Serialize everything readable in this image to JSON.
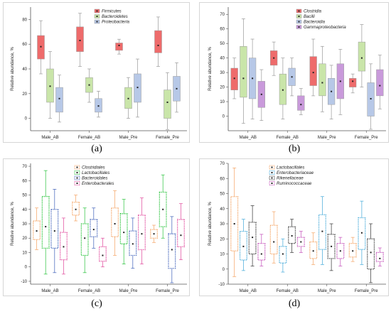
{
  "figure": {
    "captions": [
      "(a)",
      "(b)",
      "(c)",
      "(d)"
    ]
  },
  "chart_data": [
    {
      "type": "box",
      "panel": "a",
      "style": "solid",
      "ylabel": "Relative abundance, %",
      "categories": [
        "Male_AB",
        "Female_AB",
        "Male_Pre",
        "Female_Pre"
      ],
      "ylim": [
        -10,
        90
      ],
      "yticks": [
        0,
        20,
        40,
        60,
        80
      ],
      "legend_position": "top-right",
      "series": [
        {
          "name": "Firmicutes",
          "color": "#ee6b6b",
          "boxes": [
            {
              "min": 36,
              "q1": 48,
              "median": 58,
              "q3": 67,
              "max": 79
            },
            {
              "min": 42,
              "q1": 54,
              "median": 63,
              "q3": 74,
              "max": 85
            },
            {
              "min": 52,
              "q1": 55,
              "median": 59,
              "q3": 61,
              "max": 64
            },
            {
              "min": 42,
              "q1": 53,
              "median": 59,
              "q3": 71,
              "max": 82
            }
          ]
        },
        {
          "name": "Bacteroidetes",
          "color": "#c9e5a9",
          "boxes": [
            {
              "min": 0,
              "q1": 13,
              "median": 26,
              "q3": 40,
              "max": 54
            },
            {
              "min": 13,
              "q1": 21,
              "median": 27,
              "q3": 33,
              "max": 40
            },
            {
              "min": 0,
              "q1": 8,
              "median": 16,
              "q3": 25,
              "max": 33
            },
            {
              "min": -9,
              "q1": 0,
              "median": 13,
              "q3": 23,
              "max": 37
            }
          ]
        },
        {
          "name": "Proteobacteria",
          "color": "#b7c8e7",
          "boxes": [
            {
              "min": -3,
              "q1": 5,
              "median": 16,
              "q3": 25,
              "max": 35
            },
            {
              "min": 1,
              "q1": 5,
              "median": 10,
              "q3": 16,
              "max": 22
            },
            {
              "min": 1,
              "q1": 13,
              "median": 25,
              "q3": 36,
              "max": 48
            },
            {
              "min": 5,
              "q1": 14,
              "median": 24,
              "q3": 34,
              "max": 45
            }
          ]
        }
      ]
    },
    {
      "type": "box",
      "panel": "b",
      "style": "solid",
      "ylabel": "Relative abundance, %",
      "categories": [
        "Male_AB",
        "Female_AB",
        "Male_Pre",
        "Female_Pre"
      ],
      "ylim": [
        -10,
        75
      ],
      "yticks": [
        0,
        10,
        20,
        30,
        40,
        50,
        60,
        70
      ],
      "legend_position": "top-right",
      "series": [
        {
          "name": "Clostridia",
          "color": "#ee6b6b",
          "boxes": [
            {
              "min": 12,
              "q1": 18,
              "median": 26,
              "q3": 33,
              "max": 40
            },
            {
              "min": 28,
              "q1": 35,
              "median": 40,
              "q3": 45,
              "max": 51
            },
            {
              "min": 14,
              "q1": 21,
              "median": 30,
              "q3": 41,
              "max": 53
            },
            {
              "min": 16,
              "q1": 20,
              "median": 24,
              "q3": 26,
              "max": 29
            }
          ]
        },
        {
          "name": "Bacilli",
          "color": "#c9e5a9",
          "boxes": [
            {
              "min": -5,
              "q1": 13,
              "median": 26,
              "q3": 48,
              "max": 67
            },
            {
              "min": -2,
              "q1": 8,
              "median": 18,
              "q3": 29,
              "max": 40
            },
            {
              "min": 3,
              "q1": 14,
              "median": 23,
              "q3": 36,
              "max": 48
            },
            {
              "min": 20,
              "q1": 31,
              "median": 40,
              "q3": 51,
              "max": 63
            }
          ]
        },
        {
          "name": "Bacteroidia",
          "color": "#b7c8e7",
          "boxes": [
            {
              "min": -2,
              "q1": 12,
              "median": 26,
              "q3": 40,
              "max": 53
            },
            {
              "min": 14,
              "q1": 21,
              "median": 27,
              "q3": 33,
              "max": 40
            },
            {
              "min": -2,
              "q1": 8,
              "median": 17,
              "q3": 26,
              "max": 35
            },
            {
              "min": -9,
              "q1": 0,
              "median": 12,
              "q3": 23,
              "max": 36
            }
          ]
        },
        {
          "name": "Gammaproteobacteria",
          "color": "#c99adb",
          "boxes": [
            {
              "min": -3,
              "q1": 6,
              "median": 15,
              "q3": 24,
              "max": 32
            },
            {
              "min": 1,
              "q1": 4,
              "median": 8,
              "q3": 14,
              "max": 19
            },
            {
              "min": 1,
              "q1": 12,
              "median": 24,
              "q3": 36,
              "max": 46
            },
            {
              "min": 5,
              "q1": 14,
              "median": 21,
              "q3": 32,
              "max": 42
            }
          ]
        }
      ]
    },
    {
      "type": "box",
      "panel": "c",
      "style": "dotted",
      "ylabel": "Relative abundance, %",
      "categories": [
        "Male_AB",
        "Female_AB",
        "Male_Pre",
        "Female_Pre"
      ],
      "ylim": [
        -12,
        72
      ],
      "yticks": [
        -10,
        0,
        10,
        20,
        30,
        40,
        50,
        60,
        70
      ],
      "legend_position": "top-center",
      "series": [
        {
          "name": "Clostridiales",
          "color": "#f4a261",
          "boxes": [
            {
              "min": 12,
              "q1": 19,
              "median": 25,
              "q3": 32,
              "max": 41
            },
            {
              "min": 32,
              "q1": 36,
              "median": 40,
              "q3": 45,
              "max": 50
            },
            {
              "min": 8,
              "q1": 21,
              "median": 30,
              "q3": 41,
              "max": 53
            },
            {
              "min": 17,
              "q1": 20,
              "median": 23,
              "q3": 26,
              "max": 29
            }
          ]
        },
        {
          "name": "Lactobacillales",
          "color": "#27c23a",
          "boxes": [
            {
              "min": -5,
              "q1": 13,
              "median": 28,
              "q3": 49,
              "max": 67
            },
            {
              "min": -4,
              "q1": 8,
              "median": 20,
              "q3": 30,
              "max": 41
            },
            {
              "min": 2,
              "q1": 16,
              "median": 24,
              "q3": 37,
              "max": 47
            },
            {
              "min": 20,
              "q1": 28,
              "median": 40,
              "q3": 52,
              "max": 64
            }
          ]
        },
        {
          "name": "Bacteroidales",
          "color": "#3d5fb8",
          "boxes": [
            {
              "min": -4,
              "q1": 13,
              "median": 25,
              "q3": 40,
              "max": 54
            },
            {
              "min": 13,
              "q1": 21,
              "median": 26,
              "q3": 33,
              "max": 41
            },
            {
              "min": -1,
              "q1": 8,
              "median": 16,
              "q3": 25,
              "max": 34
            },
            {
              "min": -11,
              "q1": -1,
              "median": 12,
              "q3": 23,
              "max": 35
            }
          ]
        },
        {
          "name": "Enterobacterales",
          "color": "#e0479b",
          "boxes": [
            {
              "min": -5,
              "q1": 5,
              "median": 14,
              "q3": 24,
              "max": 34
            },
            {
              "min": 0,
              "q1": 4,
              "median": 8,
              "q3": 14,
              "max": 20
            },
            {
              "min": 2,
              "q1": 12,
              "median": 23,
              "q3": 36,
              "max": 48
            },
            {
              "min": 5,
              "q1": 14,
              "median": 22,
              "q3": 33,
              "max": 44
            }
          ]
        }
      ]
    },
    {
      "type": "box",
      "panel": "d",
      "style": "dotted",
      "ylabel": "Relative abundance, %",
      "categories": [
        "Male_AB",
        "Female_AB",
        "Male_Pre",
        "Female_Pre"
      ],
      "ylim": [
        -10,
        70
      ],
      "yticks": [
        -10,
        0,
        10,
        20,
        30,
        40,
        50,
        60,
        70
      ],
      "legend_position": "top-center",
      "series": [
        {
          "name": "Lactobacillales",
          "color": "#f4a261",
          "boxes": [
            {
              "min": -5,
              "q1": 12,
              "median": 30,
              "q3": 48,
              "max": 67
            },
            {
              "min": 4,
              "q1": 10,
              "median": 18,
              "q3": 29,
              "max": 38
            },
            {
              "min": 3,
              "q1": 7,
              "median": 12,
              "q3": 18,
              "max": 24
            },
            {
              "min": 5,
              "q1": 8,
              "median": 12,
              "q3": 17,
              "max": 21
            }
          ]
        },
        {
          "name": "Enterobacteriaceae",
          "color": "#41a8d8",
          "boxes": [
            {
              "min": -1,
              "q1": 6,
              "median": 15,
              "q3": 25,
              "max": 33
            },
            {
              "min": -2,
              "q1": 4,
              "median": 10,
              "q3": 15,
              "max": 20
            },
            {
              "min": 3,
              "q1": 13,
              "median": 25,
              "q3": 36,
              "max": 48
            },
            {
              "min": 3,
              "q1": 13,
              "median": 24,
              "q3": 34,
              "max": 45
            }
          ]
        },
        {
          "name": "Rikenellaceae",
          "color": "#333333",
          "boxes": [
            {
              "min": 2,
              "q1": 10,
              "median": 21,
              "q3": 31,
              "max": 42
            },
            {
              "min": 11,
              "q1": 17,
              "median": 22,
              "q3": 28,
              "max": 33
            },
            {
              "min": -1,
              "q1": 7,
              "median": 15,
              "q3": 23,
              "max": 30
            },
            {
              "min": -9,
              "q1": 0,
              "median": 11,
              "q3": 20,
              "max": 30
            }
          ]
        },
        {
          "name": "Ruminococcaceae",
          "color": "#c24bb8",
          "boxes": [
            {
              "min": 2,
              "q1": 6,
              "median": 10,
              "q3": 17,
              "max": 23
            },
            {
              "min": 11,
              "q1": 15,
              "median": 18,
              "q3": 21,
              "max": 25
            },
            {
              "min": 2,
              "q1": 7,
              "median": 12,
              "q3": 17,
              "max": 21
            },
            {
              "min": 2,
              "q1": 5,
              "median": 7,
              "q3": 11,
              "max": 14
            }
          ]
        }
      ]
    }
  ]
}
